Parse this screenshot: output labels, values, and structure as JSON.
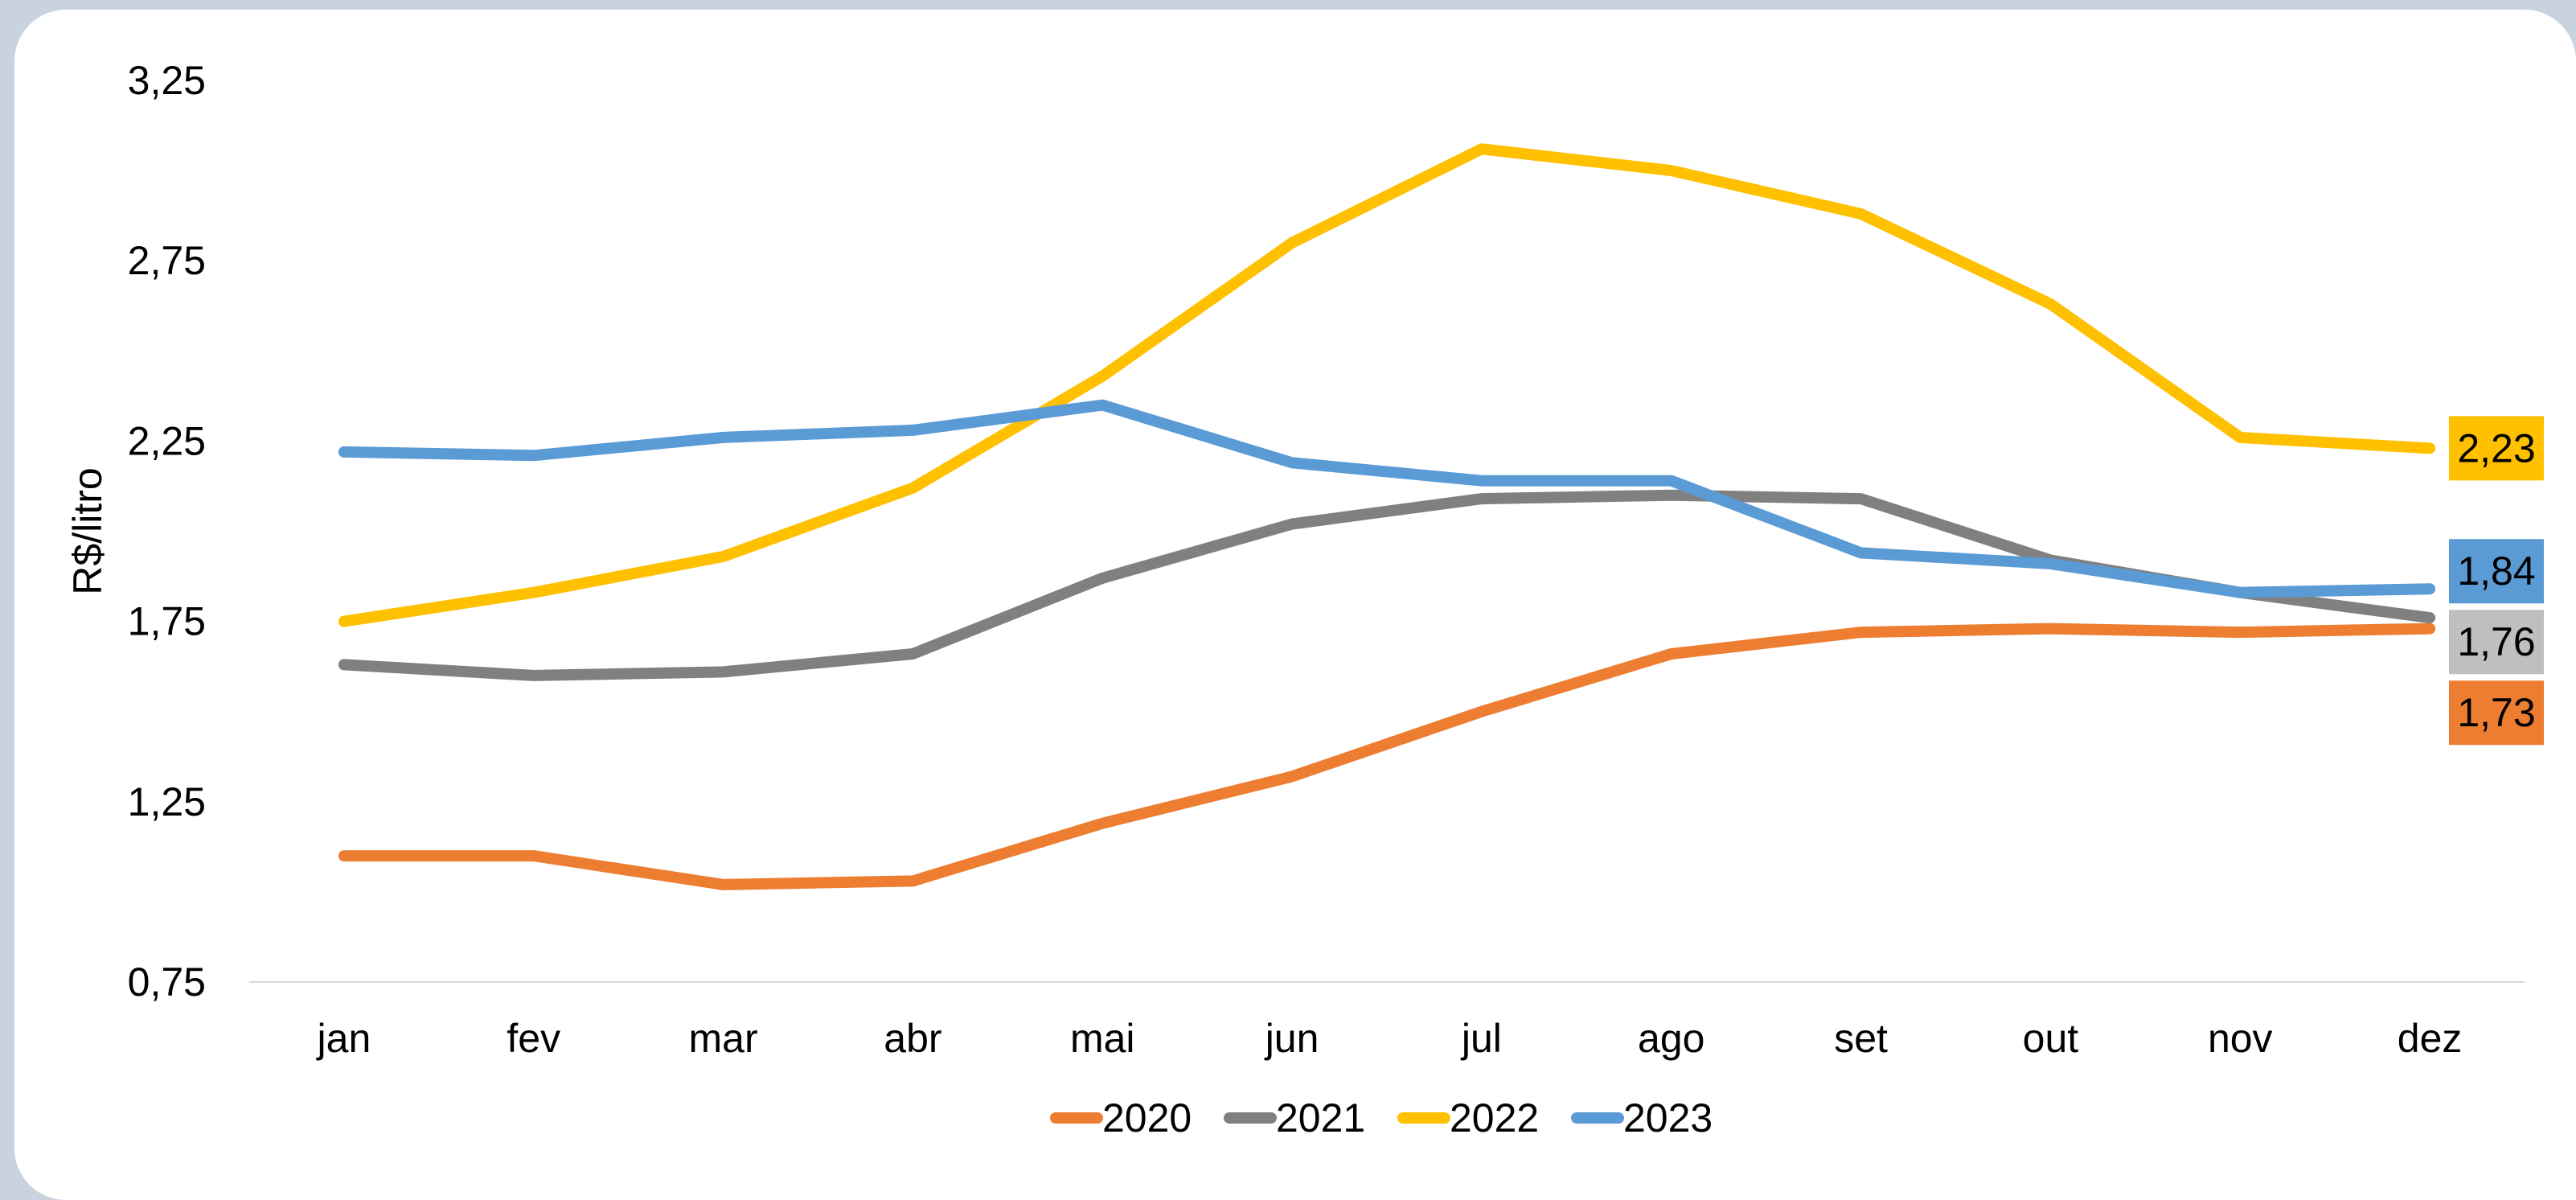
{
  "chart_data": {
    "type": "line",
    "ylabel": "R$/litro",
    "ylim": [
      0.75,
      3.25
    ],
    "yticks": [
      "0,75",
      "1,25",
      "1,75",
      "2,25",
      "2,75",
      "3,25"
    ],
    "ytick_values": [
      0.75,
      1.25,
      1.75,
      2.25,
      2.75,
      3.25
    ],
    "categories": [
      "jan",
      "fev",
      "mar",
      "abr",
      "mai",
      "jun",
      "jul",
      "ago",
      "set",
      "out",
      "nov",
      "dez"
    ],
    "grid": false,
    "legend_position": "bottom",
    "series": [
      {
        "name": "2020",
        "color": "#ED7D31",
        "values": [
          1.1,
          1.1,
          1.02,
          1.03,
          1.19,
          1.32,
          1.5,
          1.66,
          1.72,
          1.73,
          1.72,
          1.73
        ],
        "end_label": "1,73",
        "end_label_text_color": "#000000"
      },
      {
        "name": "2021",
        "color": "#808080",
        "values": [
          1.63,
          1.6,
          1.61,
          1.66,
          1.87,
          2.02,
          2.09,
          2.1,
          2.09,
          1.92,
          1.83,
          1.76
        ],
        "end_label": "1,76",
        "end_label_color": "#BFBFBF",
        "end_label_text_color": "#000000"
      },
      {
        "name": "2022",
        "color": "#FFC000",
        "values": [
          1.75,
          1.83,
          1.93,
          2.12,
          2.43,
          2.8,
          3.06,
          3.0,
          2.88,
          2.63,
          2.26,
          2.23
        ],
        "end_label": "2,23",
        "end_label_text_color": "#000000"
      },
      {
        "name": "2023",
        "color": "#5B9BD5",
        "values": [
          2.22,
          2.21,
          2.26,
          2.28,
          2.35,
          2.19,
          2.14,
          2.14,
          1.94,
          1.91,
          1.83,
          1.84
        ],
        "end_label": "1,84",
        "end_label_text_color": "#000000"
      }
    ]
  }
}
